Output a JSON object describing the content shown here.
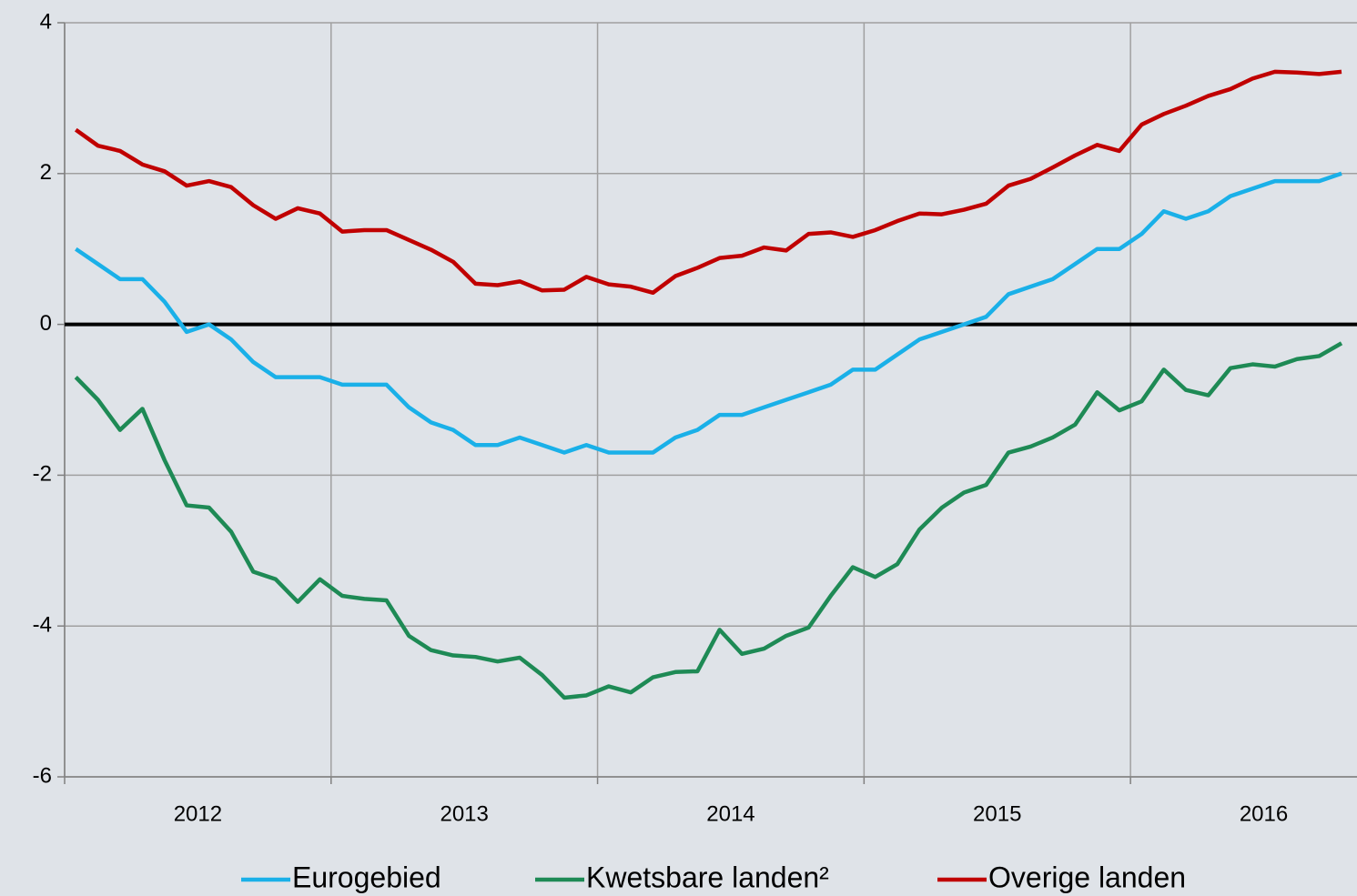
{
  "chart_data": {
    "type": "line",
    "x": [
      2012.042,
      2012.125,
      2012.208,
      2012.292,
      2012.375,
      2012.458,
      2012.542,
      2012.625,
      2012.708,
      2012.792,
      2012.875,
      2012.958,
      2013.042,
      2013.125,
      2013.208,
      2013.292,
      2013.375,
      2013.458,
      2013.542,
      2013.625,
      2013.708,
      2013.792,
      2013.875,
      2013.958,
      2014.042,
      2014.125,
      2014.208,
      2014.292,
      2014.375,
      2014.458,
      2014.542,
      2014.625,
      2014.708,
      2014.792,
      2014.875,
      2014.958,
      2015.042,
      2015.125,
      2015.208,
      2015.292,
      2015.375,
      2015.458,
      2015.542,
      2015.625,
      2015.708,
      2015.792,
      2015.875,
      2015.958,
      2016.042,
      2016.125,
      2016.208,
      2016.292,
      2016.375,
      2016.458,
      2016.542,
      2016.625,
      2016.708,
      2016.792
    ],
    "series": [
      {
        "name": "Eurogebied",
        "color": "#1ab0e8",
        "values": [
          1.0,
          0.8,
          0.6,
          0.6,
          0.3,
          -0.1,
          0.0,
          -0.2,
          -0.5,
          -0.7,
          -0.7,
          -0.7,
          -0.8,
          -0.8,
          -0.8,
          -1.1,
          -1.3,
          -1.4,
          -1.6,
          -1.6,
          -1.5,
          -1.6,
          -1.7,
          -1.6,
          -1.7,
          -1.7,
          -1.7,
          -1.5,
          -1.4,
          -1.2,
          -1.2,
          -1.1,
          -1.0,
          -0.9,
          -0.8,
          -0.6,
          -0.6,
          -0.4,
          -0.2,
          -0.1,
          0.0,
          0.1,
          0.4,
          0.5,
          0.6,
          0.8,
          1.0,
          1.0,
          1.2,
          1.5,
          1.4,
          1.5,
          1.7,
          1.8,
          1.9,
          1.9,
          1.9,
          2.0
        ]
      },
      {
        "name": "Kwetsbare landen²",
        "color": "#1e8a55",
        "values": [
          -0.7,
          -1.0,
          -1.4,
          -1.12,
          -1.8,
          -2.4,
          -2.43,
          -2.75,
          -3.28,
          -3.38,
          -3.68,
          -3.38,
          -3.6,
          -3.64,
          -3.66,
          -4.13,
          -4.32,
          -4.39,
          -4.41,
          -4.47,
          -4.42,
          -4.65,
          -4.95,
          -4.92,
          -4.8,
          -4.88,
          -4.68,
          -4.61,
          -4.6,
          -4.05,
          -4.37,
          -4.3,
          -4.13,
          -4.02,
          -3.6,
          -3.22,
          -3.35,
          -3.18,
          -2.72,
          -2.43,
          -2.23,
          -2.13,
          -1.7,
          -1.62,
          -1.5,
          -1.33,
          -0.9,
          -1.14,
          -1.02,
          -0.6,
          -0.87,
          -0.94,
          -0.58,
          -0.53,
          -0.56,
          -0.46,
          -0.42,
          -0.25
        ]
      },
      {
        "name": "Overige landen",
        "color": "#c00000",
        "values": [
          2.58,
          2.37,
          2.3,
          2.12,
          2.03,
          1.84,
          1.9,
          1.82,
          1.58,
          1.4,
          1.54,
          1.47,
          1.23,
          1.25,
          1.25,
          1.12,
          0.99,
          0.83,
          0.54,
          0.52,
          0.57,
          0.45,
          0.46,
          0.63,
          0.53,
          0.5,
          0.42,
          0.64,
          0.75,
          0.88,
          0.91,
          1.02,
          0.98,
          1.2,
          1.22,
          1.16,
          1.25,
          1.37,
          1.47,
          1.46,
          1.52,
          1.6,
          1.84,
          1.93,
          2.08,
          2.24,
          2.38,
          2.3,
          2.65,
          2.79,
          2.9,
          3.03,
          3.12,
          3.26,
          3.35,
          3.34,
          3.32,
          3.35
        ]
      }
    ],
    "xlim": [
      2012,
      2016.85
    ],
    "xticks": [
      {
        "value": 2012.5,
        "label": "2012"
      },
      {
        "value": 2013.5,
        "label": "2013"
      },
      {
        "value": 2014.5,
        "label": "2014"
      },
      {
        "value": 2015.5,
        "label": "2015"
      },
      {
        "value": 2016.5,
        "label": "2016"
      }
    ],
    "xgrid": [
      2012,
      2013,
      2014,
      2015,
      2016
    ],
    "ylim": [
      -6,
      4
    ],
    "yticks": [
      -6,
      -4,
      -2,
      0,
      2,
      4
    ],
    "grid": true,
    "legend": "bottom"
  }
}
